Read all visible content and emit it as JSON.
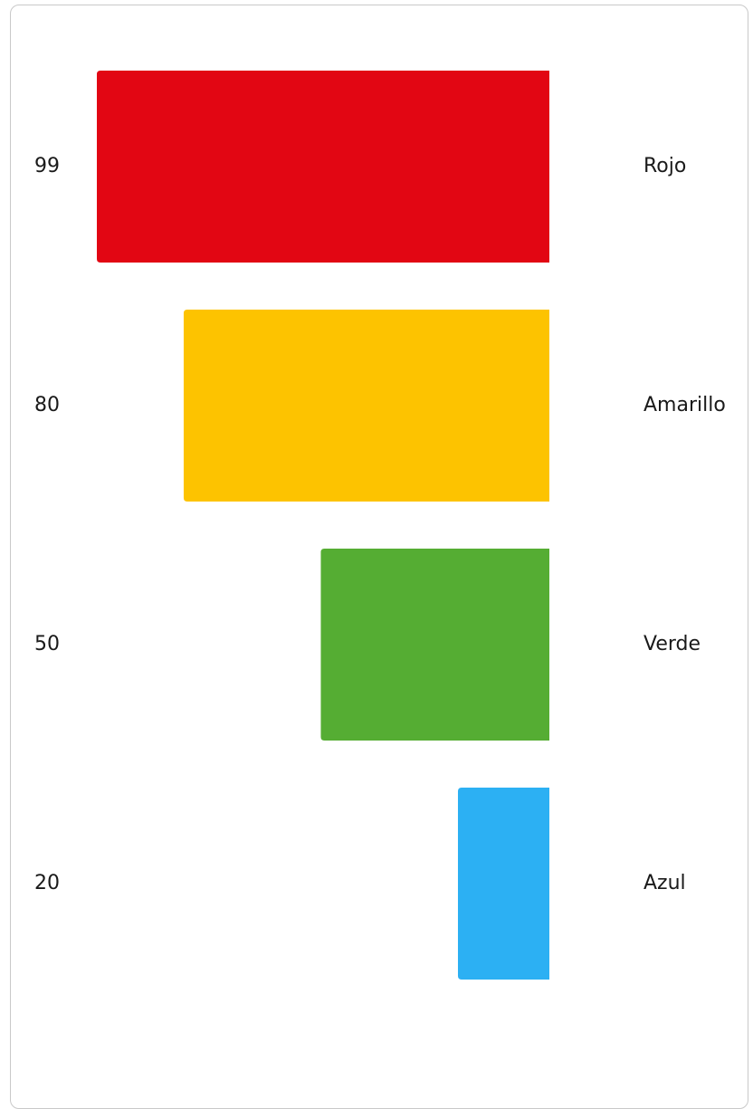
{
  "chart_data": {
    "type": "bar",
    "orientation": "horizontal",
    "direction": "right-to-left",
    "categories": [
      "Rojo",
      "Amarillo",
      "Verde",
      "Azul"
    ],
    "values": [
      99,
      80,
      50,
      20
    ],
    "colors": [
      "#e20613",
      "#fdc300",
      "#55ad33",
      "#2cb0f3"
    ],
    "xlim": [
      0,
      99
    ],
    "title": "",
    "xlabel": "",
    "ylabel": "",
    "grid": false,
    "legend": "none"
  }
}
